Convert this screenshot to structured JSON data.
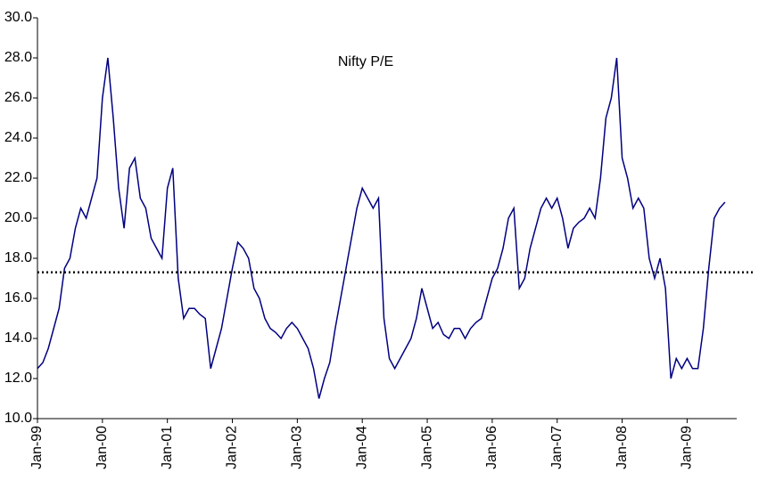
{
  "chart_data": {
    "type": "line",
    "title": "Nifty P/E",
    "x": [
      "Jan-99",
      "Feb-99",
      "Mar-99",
      "Apr-99",
      "May-99",
      "Jun-99",
      "Jul-99",
      "Aug-99",
      "Sep-99",
      "Oct-99",
      "Nov-99",
      "Dec-99",
      "Jan-00",
      "Feb-00",
      "Mar-00",
      "Apr-00",
      "May-00",
      "Jun-00",
      "Jul-00",
      "Aug-00",
      "Sep-00",
      "Oct-00",
      "Nov-00",
      "Dec-00",
      "Jan-01",
      "Feb-01",
      "Mar-01",
      "Apr-01",
      "May-01",
      "Jun-01",
      "Jul-01",
      "Aug-01",
      "Sep-01",
      "Oct-01",
      "Nov-01",
      "Dec-01",
      "Jan-02",
      "Feb-02",
      "Mar-02",
      "Apr-02",
      "May-02",
      "Jun-02",
      "Jul-02",
      "Aug-02",
      "Sep-02",
      "Oct-02",
      "Nov-02",
      "Dec-02",
      "Jan-03",
      "Feb-03",
      "Mar-03",
      "Apr-03",
      "May-03",
      "Jun-03",
      "Jul-03",
      "Aug-03",
      "Sep-03",
      "Oct-03",
      "Nov-03",
      "Dec-03",
      "Jan-04",
      "Feb-04",
      "Mar-04",
      "Apr-04",
      "May-04",
      "Jun-04",
      "Jul-04",
      "Aug-04",
      "Sep-04",
      "Oct-04",
      "Nov-04",
      "Dec-04",
      "Jan-05",
      "Feb-05",
      "Mar-05",
      "Apr-05",
      "May-05",
      "Jun-05",
      "Jul-05",
      "Aug-05",
      "Sep-05",
      "Oct-05",
      "Nov-05",
      "Dec-05",
      "Jan-06",
      "Feb-06",
      "Mar-06",
      "Apr-06",
      "May-06",
      "Jun-06",
      "Jul-06",
      "Aug-06",
      "Sep-06",
      "Oct-06",
      "Nov-06",
      "Dec-06",
      "Jan-07",
      "Feb-07",
      "Mar-07",
      "Apr-07",
      "May-07",
      "Jun-07",
      "Jul-07",
      "Aug-07",
      "Sep-07",
      "Oct-07",
      "Nov-07",
      "Dec-07",
      "Jan-08",
      "Feb-08",
      "Mar-08",
      "Apr-08",
      "May-08",
      "Jun-08",
      "Jul-08",
      "Aug-08",
      "Sep-08",
      "Oct-08",
      "Nov-08",
      "Dec-08",
      "Jan-09",
      "Feb-09",
      "Mar-09",
      "Apr-09",
      "May-09",
      "Jun-09",
      "Jul-09",
      "Aug-09"
    ],
    "series": [
      {
        "color": "#000080",
        "values": [
          12.5,
          12.8,
          13.5,
          14.5,
          15.5,
          17.5,
          18.0,
          19.5,
          20.5,
          20.0,
          21.0,
          22.0,
          26.0,
          28.0,
          25.0,
          21.5,
          19.5,
          22.5,
          23.0,
          21.0,
          20.5,
          19.0,
          18.5,
          18.0,
          21.5,
          22.5,
          17.0,
          15.0,
          15.5,
          15.5,
          15.2,
          15.0,
          12.5,
          13.5,
          14.5,
          16.0,
          17.5,
          18.8,
          18.5,
          18.0,
          16.5,
          16.0,
          15.0,
          14.5,
          14.3,
          14.0,
          14.5,
          14.8,
          14.5,
          14.0,
          13.5,
          12.5,
          11.0,
          12.0,
          12.8,
          14.5,
          16.0,
          17.5,
          19.0,
          20.5,
          21.5,
          21.0,
          20.5,
          21.0,
          15.0,
          13.0,
          12.5,
          13.0,
          13.5,
          14.0,
          15.0,
          16.5,
          15.5,
          14.5,
          14.8,
          14.2,
          14.0,
          14.5,
          14.5,
          14.0,
          14.5,
          14.8,
          15.0,
          16.0,
          17.0,
          17.5,
          18.5,
          20.0,
          20.5,
          16.5,
          17.0,
          18.5,
          19.5,
          20.5,
          21.0,
          20.5,
          21.0,
          20.0,
          18.5,
          19.5,
          19.8,
          20.0,
          20.5,
          20.0,
          22.0,
          25.0,
          26.0,
          28.0,
          23.0,
          22.0,
          20.5,
          21.0,
          20.5,
          18.0,
          17.0,
          18.0,
          16.5,
          12.0,
          13.0,
          12.5,
          13.0,
          12.5,
          12.5,
          14.5,
          17.5,
          20.0,
          20.5,
          20.8
        ]
      }
    ],
    "hline": 17.3,
    "xticks": [
      "Jan-99",
      "Jan-00",
      "Jan-01",
      "Jan-02",
      "Jan-03",
      "Jan-04",
      "Jan-05",
      "Jan-06",
      "Jan-07",
      "Jan-08",
      "Jan-09"
    ],
    "ylim": [
      10,
      30
    ],
    "yticks": [
      {
        "value": 10,
        "label": "10.0"
      },
      {
        "value": 12,
        "label": "12.0"
      },
      {
        "value": 14,
        "label": "14.0"
      },
      {
        "value": 16,
        "label": "16.0"
      },
      {
        "value": 18,
        "label": "18.0"
      },
      {
        "value": 20,
        "label": "20.0"
      },
      {
        "value": 22,
        "label": "22.0"
      },
      {
        "value": 24,
        "label": "24.0"
      },
      {
        "value": 26,
        "label": "26.0"
      },
      {
        "value": 28,
        "label": "28.0"
      },
      {
        "value": 30,
        "label": "30.0"
      }
    ],
    "grid": false
  }
}
